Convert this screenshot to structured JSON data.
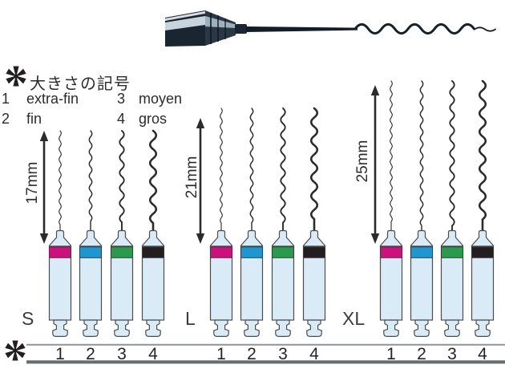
{
  "legend": {
    "title": "大きさの記号",
    "items": [
      {
        "num": "1",
        "label": "extra-fin"
      },
      {
        "num": "2",
        "label": "fin"
      },
      {
        "num": "3",
        "label": "moyen"
      },
      {
        "num": "4",
        "label": "gros"
      }
    ]
  },
  "groups": [
    {
      "label": "S",
      "length": "17mm",
      "instruments": [
        {
          "num": "1",
          "band_color": "#cf0f7e"
        },
        {
          "num": "2",
          "band_color": "#1e96d2"
        },
        {
          "num": "3",
          "band_color": "#2a9b4a"
        },
        {
          "num": "4",
          "band_color": "#231f20"
        }
      ]
    },
    {
      "label": "L",
      "length": "21mm",
      "instruments": [
        {
          "num": "1",
          "band_color": "#cf0f7e"
        },
        {
          "num": "2",
          "band_color": "#1e96d2"
        },
        {
          "num": "3",
          "band_color": "#2a9b4a"
        },
        {
          "num": "4",
          "band_color": "#231f20"
        }
      ]
    },
    {
      "label": "XL",
      "length": "25mm",
      "instruments": [
        {
          "num": "1",
          "band_color": "#cf0f7e"
        },
        {
          "num": "2",
          "band_color": "#1e96d2"
        },
        {
          "num": "3",
          "band_color": "#2a9b4a"
        },
        {
          "num": "4",
          "band_color": "#231f20"
        }
      ]
    }
  ],
  "colors": {
    "handle_body": "#d8ebf7",
    "outline": "#4d4d4d",
    "wire": "#2b2b2b",
    "metal_dark": "#1a2532",
    "metal_mid": "#2a3845",
    "metal_light": "#c7d3dd",
    "rule_thin": "#8e9398",
    "rule_thick": "#666d73",
    "arrow": "#2b2b2b",
    "asterisk": "#231f20",
    "text": "#2b2b2b"
  }
}
